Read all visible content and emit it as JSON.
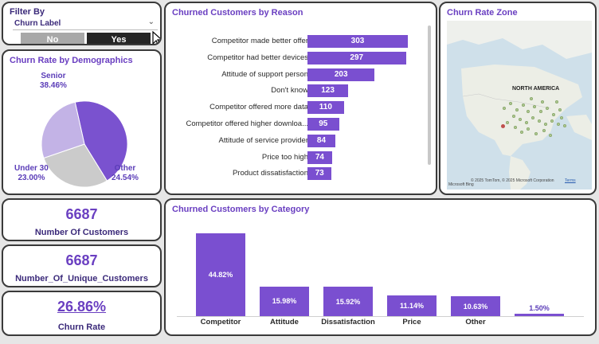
{
  "filter": {
    "title": "Filter By",
    "field": "Churn Label",
    "options": [
      "No",
      "Yes"
    ],
    "selected": "Yes"
  },
  "demographics": {
    "title": "Churn Rate by Demographics",
    "slices": [
      {
        "name": "Senior",
        "pct": "38.46%",
        "value": 38.46,
        "color": "#7a52cf"
      },
      {
        "name": "Other",
        "pct": "24.54%",
        "value": 24.54,
        "color": "#cbcbcb"
      },
      {
        "name": "Under 30",
        "pct": "23.00%",
        "value": 23.0,
        "color": "#c3b3e6"
      }
    ]
  },
  "kpis": [
    {
      "value": "6687",
      "label": "Number Of Customers"
    },
    {
      "value": "6687",
      "label": "Number_Of_Unique_Customers"
    },
    {
      "value": "26.86%",
      "label": "Churn Rate"
    }
  ],
  "reason": {
    "title": "Churned Customers by Reason",
    "max": 303,
    "rows": [
      {
        "label": "Competitor made better offer",
        "value": 303
      },
      {
        "label": "Competitor had better devices",
        "value": 297
      },
      {
        "label": "Attitude of support person",
        "value": 203
      },
      {
        "label": "Don't know",
        "value": 123
      },
      {
        "label": "Competitor offered more data",
        "value": 110
      },
      {
        "label": "Competitor offered higher downloa...",
        "value": 95
      },
      {
        "label": "Attitude of service provider",
        "value": 84
      },
      {
        "label": "Price too high",
        "value": 74
      },
      {
        "label": "Product dissatisfaction",
        "value": 73
      }
    ]
  },
  "map": {
    "title": "Churn Rate Zone",
    "region_label": "NORTH AMERICA",
    "attribution": "© 2025 TomTom, © 2025 Microsoft Corporation",
    "terms": "Terms",
    "brand": "Microsoft Bing"
  },
  "category": {
    "title": "Churned Customers by Category",
    "max": 44.82,
    "bars": [
      {
        "name": "Competitor",
        "pct": "44.82%",
        "value": 44.82
      },
      {
        "name": "Attitude",
        "pct": "15.98%",
        "value": 15.98
      },
      {
        "name": "Dissatisfaction",
        "pct": "15.92%",
        "value": 15.92
      },
      {
        "name": "Price",
        "pct": "11.14%",
        "value": 11.14
      },
      {
        "name": "Other",
        "pct": "10.63%",
        "value": 10.63
      },
      {
        "name": "",
        "pct": "1.50%",
        "value": 1.5
      }
    ]
  },
  "chart_data": [
    {
      "type": "pie",
      "title": "Churn Rate by Demographics",
      "categories": [
        "Senior",
        "Other",
        "Under 30"
      ],
      "values": [
        38.46,
        24.54,
        23.0
      ]
    },
    {
      "type": "bar",
      "title": "Churned Customers by Reason",
      "categories": [
        "Competitor made better offer",
        "Competitor had better devices",
        "Attitude of support person",
        "Don't know",
        "Competitor offered more data",
        "Competitor offered higher downloa...",
        "Attitude of service provider",
        "Price too high",
        "Product dissatisfaction"
      ],
      "values": [
        303,
        297,
        203,
        123,
        110,
        95,
        84,
        74,
        73
      ]
    },
    {
      "type": "bar",
      "title": "Churned Customers by Category",
      "categories": [
        "Competitor",
        "Attitude",
        "Dissatisfaction",
        "Price",
        "Other",
        ""
      ],
      "values": [
        44.82,
        15.98,
        15.92,
        11.14,
        10.63,
        1.5
      ]
    }
  ]
}
